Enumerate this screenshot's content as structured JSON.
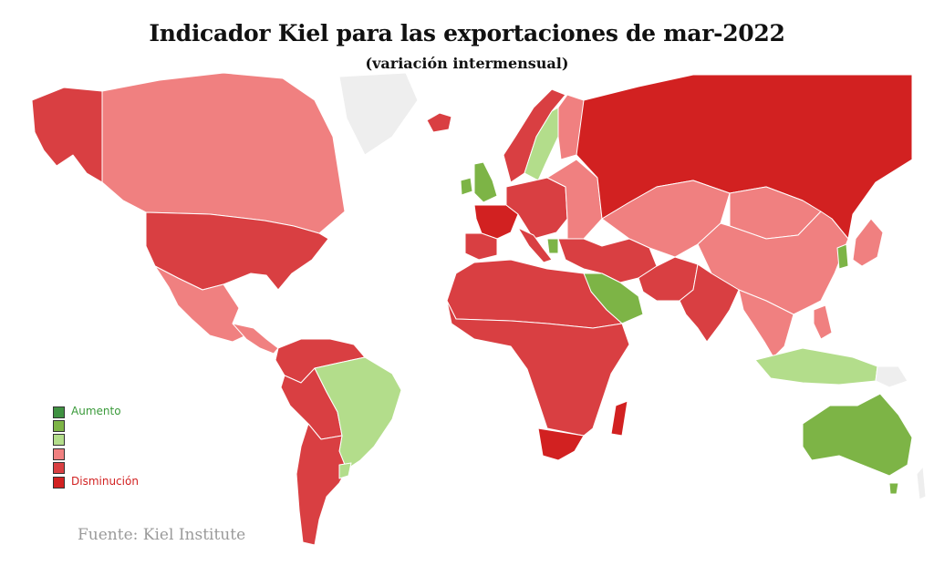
{
  "title": "Indicador Kiel para las exportaciones de mar-2022",
  "subtitle": "(variación intermensual)",
  "source": "Fuente: Kiel Institute",
  "colors": {
    "increase_strong": "#3f9141",
    "increase": "#7db446",
    "increase_light": "#b3dd8b",
    "decrease_light": "#f08080",
    "decrease": "#d93f42",
    "decrease_strong": "#d22121",
    "no_data": "#eeeeee",
    "label_increase": "#3a9a3a",
    "label_decrease": "#d22121"
  },
  "legend": [
    {
      "class": "increase_strong",
      "label": "Aumento"
    },
    {
      "class": "increase",
      "label": ""
    },
    {
      "class": "increase_light",
      "label": ""
    },
    {
      "class": "decrease_light",
      "label": ""
    },
    {
      "class": "decrease",
      "label": ""
    },
    {
      "class": "decrease_strong",
      "label": "Disminución"
    }
  ],
  "regions": [
    {
      "name": "alaska",
      "class": "decrease"
    },
    {
      "name": "canada",
      "class": "decrease_light"
    },
    {
      "name": "greenland",
      "class": "no_data"
    },
    {
      "name": "united-states",
      "class": "decrease"
    },
    {
      "name": "mexico",
      "class": "decrease_light"
    },
    {
      "name": "central-america",
      "class": "decrease_light"
    },
    {
      "name": "colombia-venezuela",
      "class": "decrease"
    },
    {
      "name": "peru-bolivia",
      "class": "decrease"
    },
    {
      "name": "brazil",
      "class": "increase_light"
    },
    {
      "name": "argentina-chile",
      "class": "decrease"
    },
    {
      "name": "uruguay",
      "class": "increase_light"
    },
    {
      "name": "iceland",
      "class": "decrease"
    },
    {
      "name": "norway",
      "class": "decrease"
    },
    {
      "name": "sweden",
      "class": "increase_light"
    },
    {
      "name": "finland",
      "class": "decrease_light"
    },
    {
      "name": "united-kingdom",
      "class": "increase"
    },
    {
      "name": "ireland",
      "class": "increase"
    },
    {
      "name": "france",
      "class": "decrease_strong"
    },
    {
      "name": "iberia",
      "class": "decrease"
    },
    {
      "name": "central-europe",
      "class": "decrease"
    },
    {
      "name": "eastern-europe",
      "class": "decrease_light"
    },
    {
      "name": "italy",
      "class": "decrease"
    },
    {
      "name": "greece",
      "class": "increase"
    },
    {
      "name": "russia",
      "class": "decrease_strong"
    },
    {
      "name": "kazakhstan-central-asia",
      "class": "decrease_light"
    },
    {
      "name": "mongolia",
      "class": "decrease_light"
    },
    {
      "name": "china",
      "class": "decrease_light"
    },
    {
      "name": "turkey-middle-east",
      "class": "decrease"
    },
    {
      "name": "saudi-arabia",
      "class": "increase"
    },
    {
      "name": "iran-pakistan",
      "class": "decrease"
    },
    {
      "name": "india",
      "class": "decrease"
    },
    {
      "name": "southeast-asia",
      "class": "decrease_light"
    },
    {
      "name": "korea",
      "class": "increase"
    },
    {
      "name": "japan",
      "class": "decrease_light"
    },
    {
      "name": "indonesia",
      "class": "increase_light"
    },
    {
      "name": "philippines",
      "class": "decrease_light"
    },
    {
      "name": "papua-new-guinea",
      "class": "no_data"
    },
    {
      "name": "north-africa",
      "class": "decrease"
    },
    {
      "name": "sub-saharan-africa",
      "class": "decrease"
    },
    {
      "name": "south-africa",
      "class": "decrease_strong"
    },
    {
      "name": "madagascar",
      "class": "decrease_strong"
    },
    {
      "name": "australia",
      "class": "increase"
    },
    {
      "name": "tasmania",
      "class": "increase"
    },
    {
      "name": "new-zealand",
      "class": "no_data"
    }
  ]
}
